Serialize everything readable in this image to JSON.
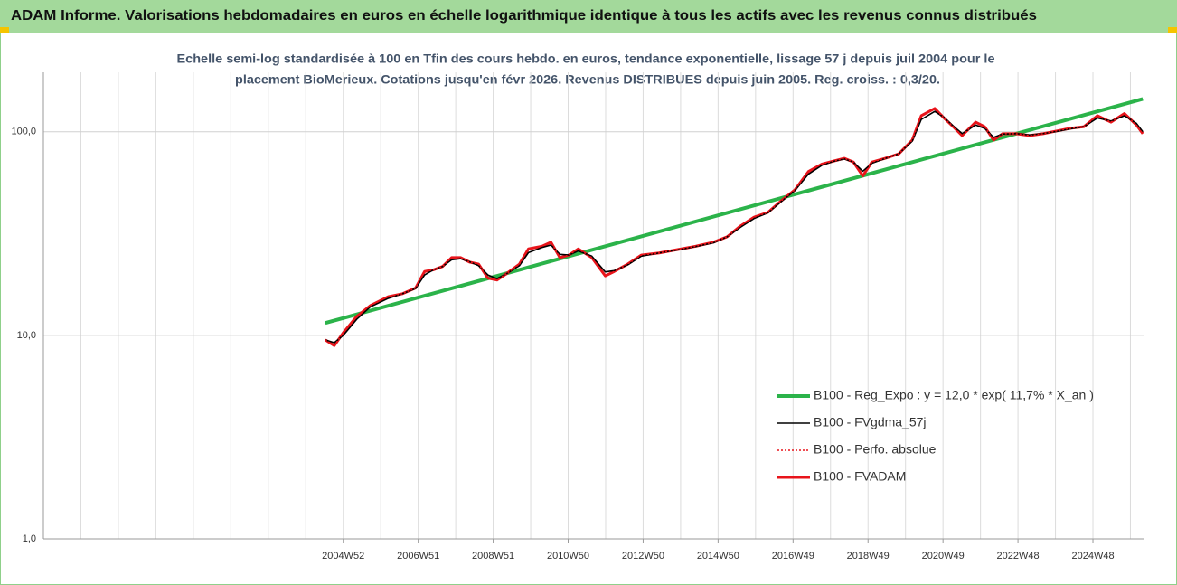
{
  "chart_data": {
    "type": "line",
    "title": "ADAM Informe. Valorisations hebdomadaires en euros en échelle logarithmique identique à tous les actifs avec les revenus connus distribués",
    "subtitle": [
      "Echelle semi-log standardisée à 100 en Tfin des cours hebdo. en euros, tendance exponentielle, lissage 57 j depuis juil 2004 pour le",
      "placement BioMerieux. Cotations jusqu'en févr 2026. Revenus DISTRIBUES depuis juin 2005. Reg. croiss. : 0,3/20."
    ],
    "log_scale": true,
    "grid": true,
    "xgrid_step": 1,
    "legend": "lower right",
    "xlim": [
      1997,
      2026.35
    ],
    "xticks": [
      {
        "value": 2005,
        "label": "2004W52"
      },
      {
        "value": 2007,
        "label": "2006W51"
      },
      {
        "value": 2009,
        "label": "2008W51"
      },
      {
        "value": 2011,
        "label": "2010W50"
      },
      {
        "value": 2013,
        "label": "2012W50"
      },
      {
        "value": 2015,
        "label": "2014W50"
      },
      {
        "value": 2017,
        "label": "2016W49"
      },
      {
        "value": 2019,
        "label": "2018W49"
      },
      {
        "value": 2021,
        "label": "2020W49"
      },
      {
        "value": 2023,
        "label": "2022W48"
      },
      {
        "value": 2025,
        "label": "2024W48"
      }
    ],
    "ylim": [
      1,
      196
    ],
    "yticks": [
      {
        "value": 1,
        "label": "1,0"
      },
      {
        "value": 10,
        "label": "10,0"
      },
      {
        "value": 100,
        "label": "100,0"
      }
    ],
    "x": [
      2004.52,
      2004.76,
      2005.0,
      2005.36,
      2005.72,
      2006.2,
      2006.57,
      2006.93,
      2007.17,
      2007.41,
      2007.65,
      2007.89,
      2008.13,
      2008.37,
      2008.61,
      2008.86,
      2009.1,
      2009.34,
      2009.7,
      2009.94,
      2010.3,
      2010.54,
      2010.78,
      2011.02,
      2011.27,
      2011.63,
      2011.99,
      2012.23,
      2012.59,
      2012.95,
      2013.43,
      2013.92,
      2014.4,
      2014.88,
      2015.24,
      2015.6,
      2015.96,
      2016.33,
      2016.69,
      2017.05,
      2017.41,
      2017.77,
      2018.13,
      2018.37,
      2018.61,
      2018.86,
      2019.1,
      2019.46,
      2019.82,
      2020.18,
      2020.42,
      2020.78,
      2021.02,
      2021.27,
      2021.51,
      2021.87,
      2022.11,
      2022.35,
      2022.59,
      2022.95,
      2023.31,
      2023.67,
      2024.04,
      2024.4,
      2024.76,
      2025.12,
      2025.48,
      2025.84,
      2026.16,
      2026.33
    ],
    "series": [
      {
        "name": "B100 - Reg_Expo : y = 12,0 * exp( 11,7% *  X_an )",
        "color": "#2bb34a",
        "style": "solid",
        "width": 4,
        "x": [
          2004.52,
          2026.33
        ],
        "values": [
          11.5,
          145
        ]
      },
      {
        "name": "B100 - FVgdma_57j",
        "color": "#000000",
        "style": "solid",
        "width": 1.6,
        "values": [
          9.5,
          9.2,
          10.0,
          12.0,
          13.8,
          15.2,
          16.0,
          17.0,
          19.8,
          21.0,
          21.8,
          23.5,
          23.8,
          23.0,
          22.0,
          19.8,
          19.0,
          20.0,
          22.0,
          25.5,
          27.0,
          27.8,
          25.0,
          24.8,
          26.0,
          24.5,
          20.5,
          20.8,
          22.2,
          24.5,
          25.4,
          26.3,
          27.3,
          28.5,
          30.5,
          34.0,
          37.5,
          40.0,
          45.5,
          51.5,
          62.0,
          68.5,
          72.0,
          73.5,
          71.0,
          64.0,
          70.0,
          74.0,
          78.0,
          90.0,
          115.0,
          126.0,
          118.0,
          107.0,
          98.0,
          108.0,
          104.0,
          94.0,
          97.5,
          98.0,
          96.5,
          98.0,
          100.5,
          103.5,
          106.0,
          117.0,
          113.0,
          120.0,
          110.0,
          100.0
        ]
      },
      {
        "name": "B100 - Perfo. absolue",
        "color": "#e8141b",
        "style": "dotted",
        "width": 1.5,
        "values": [
          9.5,
          8.9,
          10.3,
          12.4,
          14.0,
          15.5,
          16.0,
          17.1,
          20.6,
          21.0,
          21.8,
          24.1,
          24.1,
          22.9,
          22.4,
          19.1,
          18.7,
          20.0,
          22.4,
          26.6,
          27.4,
          28.7,
          24.1,
          24.8,
          26.6,
          24.1,
          19.6,
          20.6,
          22.4,
          24.8,
          25.4,
          26.4,
          27.4,
          28.7,
          30.5,
          34.5,
          38.1,
          40.2,
          45.9,
          51.9,
          63.8,
          69.4,
          72.2,
          74.1,
          71.0,
          60.7,
          71.0,
          74.1,
          77.9,
          91.1,
          120.0,
          130.3,
          117.3,
          106.0,
          95.9,
          111.6,
          106.0,
          91.1,
          97.9,
          97.9,
          95.9,
          97.9,
          101.0,
          104.1,
          106.0,
          120.0,
          111.6,
          123.0,
          108.0,
          97.9
        ]
      },
      {
        "name": "B100 - FVADAM",
        "color": "#e8141b",
        "style": "solid",
        "width": 3,
        "values": [
          9.5,
          8.9,
          10.3,
          12.4,
          14.0,
          15.5,
          16.0,
          17.1,
          20.6,
          21.0,
          21.8,
          24.1,
          24.1,
          22.9,
          22.4,
          19.1,
          18.7,
          20.0,
          22.4,
          26.6,
          27.4,
          28.7,
          24.1,
          24.8,
          26.6,
          24.1,
          19.6,
          20.6,
          22.4,
          24.8,
          25.4,
          26.4,
          27.4,
          28.7,
          30.5,
          34.5,
          38.1,
          40.2,
          45.9,
          51.9,
          63.8,
          69.4,
          72.2,
          74.1,
          71.0,
          60.7,
          71.0,
          74.1,
          77.9,
          91.1,
          120.0,
          130.3,
          117.3,
          106.0,
          95.9,
          111.6,
          106.0,
          91.1,
          97.9,
          97.9,
          95.9,
          97.9,
          101.0,
          104.1,
          106.0,
          120.0,
          111.6,
          123.0,
          108.0,
          97.9
        ]
      }
    ]
  }
}
